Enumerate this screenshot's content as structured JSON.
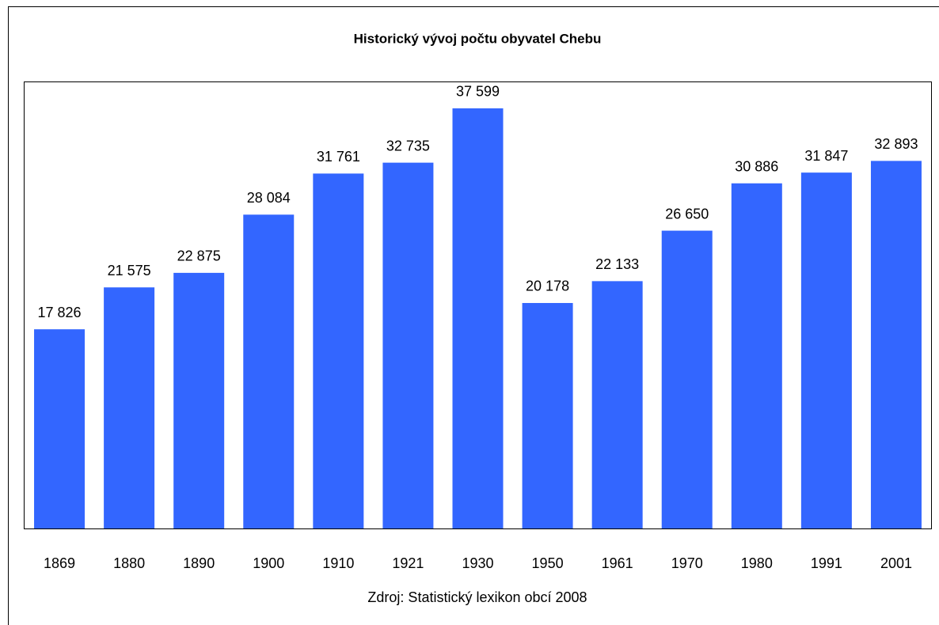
{
  "chart_data": {
    "type": "bar",
    "title": "Historický vývoj počtu obyvatel Chebu",
    "categories": [
      "1869",
      "1880",
      "1890",
      "1900",
      "1910",
      "1921",
      "1930",
      "1950",
      "1961",
      "1970",
      "1980",
      "1991",
      "2001"
    ],
    "values": [
      17826,
      21575,
      22875,
      28084,
      31761,
      32735,
      37599,
      20178,
      22133,
      26650,
      30886,
      31847,
      32893
    ],
    "value_labels": [
      "17 826",
      "21 575",
      "22 875",
      "28 084",
      "31 761",
      "32 735",
      "37 599",
      "20 178",
      "22 133",
      "26 650",
      "30 886",
      "31 847",
      "32 893"
    ],
    "color": "#3366ff",
    "ylim": [
      0,
      40000
    ],
    "source": "Zdroj: Statistický lexikon obcí 2008"
  }
}
